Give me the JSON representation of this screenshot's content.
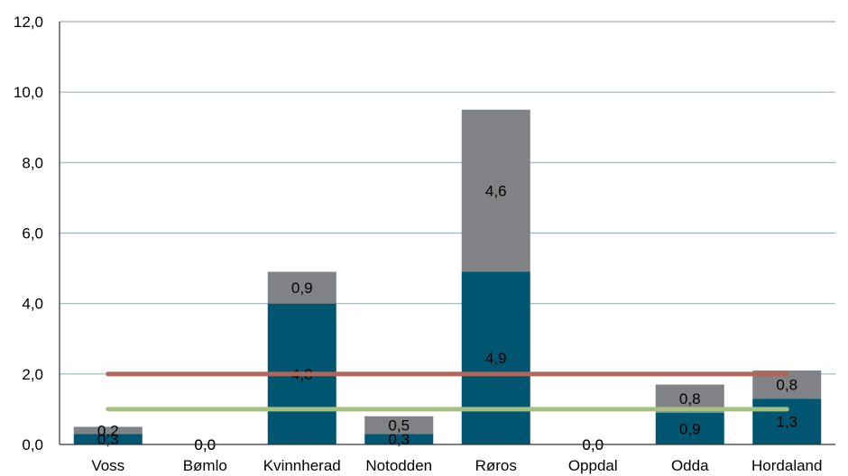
{
  "chart_data": {
    "type": "bar",
    "stacked": true,
    "categories": [
      "Voss",
      "Bømlo",
      "Kvinnherad",
      "Notodden",
      "Røros",
      "Oppdal",
      "Odda",
      "Hordaland"
    ],
    "series": [
      {
        "color": "#005670",
        "values": [
          0.3,
          0.0,
          4.0,
          0.3,
          4.9,
          0.0,
          0.9,
          1.3
        ],
        "labels": [
          "0,3",
          "0,0",
          "4,0",
          "0,3",
          "4,9",
          "0,0",
          "0,9",
          "1,3"
        ]
      },
      {
        "color": "#808285",
        "values": [
          0.2,
          0.0,
          0.9,
          0.5,
          4.6,
          0.0,
          0.8,
          0.8
        ],
        "labels": [
          "0,2",
          "0,0",
          "0,9",
          "0,5",
          "4,6",
          "0,0",
          "0,8",
          "0,8"
        ]
      }
    ],
    "reference_lines": [
      {
        "value": 2.0,
        "color": "#b0665a"
      },
      {
        "value": 1.0,
        "color": "#a6c07f"
      }
    ],
    "ylim": [
      0,
      12
    ],
    "yticks": [
      0,
      2,
      4,
      6,
      8,
      10,
      12
    ],
    "ytick_labels": [
      "0,0",
      "2,0",
      "4,0",
      "6,0",
      "8,0",
      "10,0",
      "12,0"
    ],
    "grid": true,
    "title": "",
    "xlabel": "",
    "ylabel": ""
  }
}
